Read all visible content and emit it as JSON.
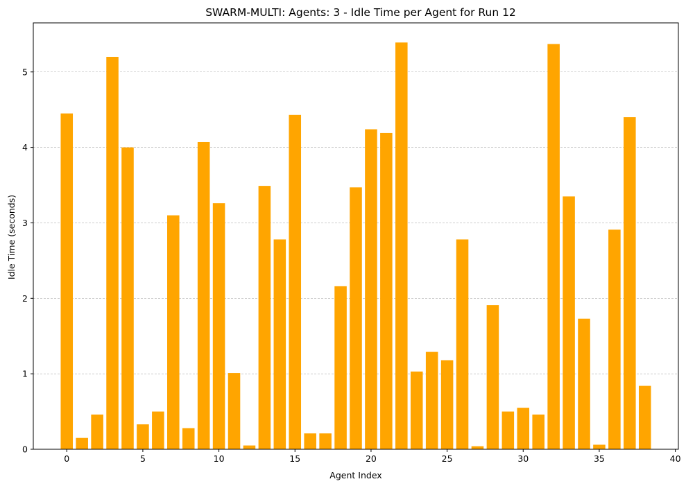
{
  "chart_data": {
    "type": "bar",
    "title": "SWARM-MULTI: Agents: 3 - Idle Time per Agent for Run 12",
    "xlabel": "Agent Index",
    "ylabel": "Idle Time (seconds)",
    "xlim": [
      -2.2,
      40.2
    ],
    "ylim": [
      0,
      5.65
    ],
    "xticks": [
      0,
      5,
      10,
      15,
      20,
      25,
      30,
      35,
      40
    ],
    "yticks": [
      0,
      1,
      2,
      3,
      4,
      5
    ],
    "grid": "y",
    "bar_color": "#ffa500",
    "grid_color": "#b0b0b0",
    "x": [
      0,
      1,
      2,
      3,
      4,
      5,
      6,
      7,
      8,
      9,
      10,
      11,
      12,
      13,
      14,
      15,
      16,
      17,
      18,
      19,
      20,
      21,
      22,
      23,
      24,
      25,
      26,
      27,
      28,
      29,
      30,
      31,
      32,
      33,
      34,
      35,
      36,
      37,
      38
    ],
    "values": [
      4.45,
      0.15,
      0.46,
      5.2,
      4.0,
      0.33,
      0.5,
      3.1,
      0.28,
      4.07,
      3.26,
      1.01,
      0.05,
      3.49,
      2.78,
      4.43,
      0.21,
      0.21,
      2.16,
      3.47,
      4.24,
      4.19,
      5.39,
      1.03,
      1.29,
      1.18,
      2.78,
      0.04,
      1.91,
      0.5,
      0.55,
      0.46,
      5.37,
      3.35,
      1.73,
      0.06,
      2.91,
      4.4,
      0.84
    ]
  }
}
